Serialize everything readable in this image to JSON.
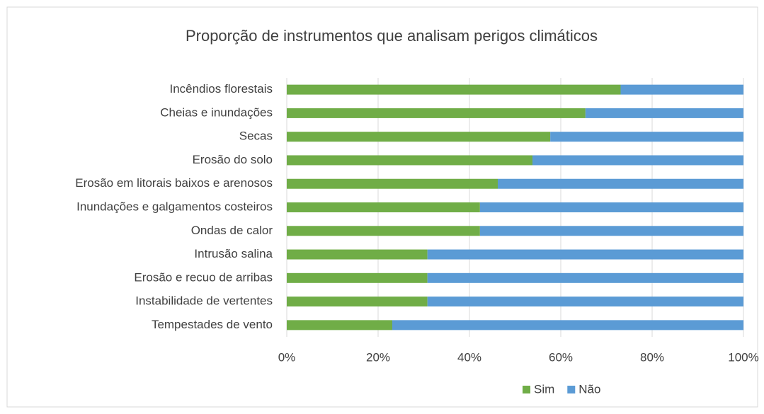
{
  "chart_data": {
    "type": "stacked_bar_horizontal",
    "title": "Proporção de instrumentos que analisam perigos climáticos",
    "categories": [
      "Incêndios florestais",
      "Cheias e inundações",
      "Secas",
      "Erosão do solo",
      "Erosão em litorais baixos e arenosos",
      "Inundações e galgamentos costeiros",
      "Ondas de calor",
      "Intrusão salina",
      "Erosão e recuo de arribas",
      "Instabilidade de vertentes",
      "Tempestades de vento"
    ],
    "series": [
      {
        "name": "Sim",
        "color": "#70ad47",
        "values": [
          73.1,
          65.4,
          57.7,
          53.8,
          46.2,
          42.3,
          42.3,
          30.8,
          30.8,
          30.8,
          23.1
        ]
      },
      {
        "name": "Não",
        "color": "#5b9bd5",
        "values": [
          26.9,
          34.6,
          42.3,
          46.2,
          53.8,
          57.7,
          57.7,
          69.2,
          69.2,
          69.2,
          76.9
        ]
      }
    ],
    "xlim": [
      0,
      100
    ],
    "xticks": [
      {
        "value": 0,
        "label": "0%"
      },
      {
        "value": 20,
        "label": "20%"
      },
      {
        "value": 40,
        "label": "40%"
      },
      {
        "value": 60,
        "label": "60%"
      },
      {
        "value": 80,
        "label": "80%"
      },
      {
        "value": 100,
        "label": "100%"
      }
    ],
    "grid": true,
    "legend": "bottom"
  }
}
